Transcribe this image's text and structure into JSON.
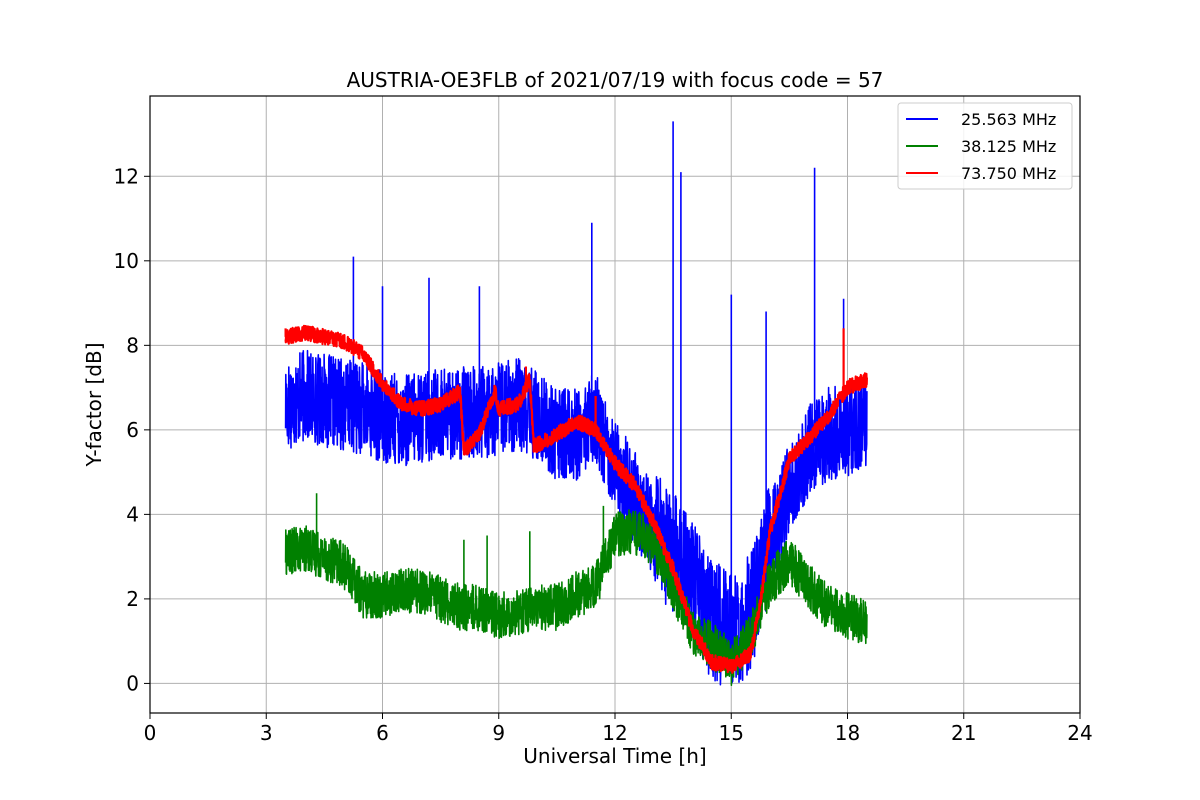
{
  "chart_data": {
    "type": "line",
    "title": "AUSTRIA-OE3FLB of 2021/07/19 with focus code = 57",
    "xlabel": "Universal Time [h]",
    "ylabel": "Y-factor [dB]",
    "xlim": [
      0,
      24
    ],
    "ylim": [
      -0.7,
      13.9
    ],
    "xticks": [
      0,
      3,
      6,
      9,
      12,
      15,
      18,
      21,
      24
    ],
    "xtick_labels": [
      "0",
      "3",
      "6",
      "9",
      "12",
      "15",
      "18",
      "21",
      "24"
    ],
    "yticks": [
      0,
      2,
      4,
      6,
      8,
      10,
      12
    ],
    "ytick_labels": [
      "0",
      "2",
      "4",
      "6",
      "8",
      "10",
      "12"
    ],
    "grid": true,
    "legend_position": "top-right",
    "series": [
      {
        "name": "25.563 MHz",
        "color": "#0000ff",
        "x": [
          3.5,
          4.0,
          4.5,
          5.0,
          5.5,
          6.0,
          6.5,
          7.0,
          7.5,
          8.0,
          8.5,
          9.0,
          9.5,
          10.0,
          10.5,
          11.0,
          11.5,
          12.0,
          12.5,
          13.0,
          13.5,
          14.0,
          14.5,
          15.0,
          15.5,
          16.0,
          16.5,
          17.0,
          17.5,
          18.0,
          18.5
        ],
        "y": [
          6.6,
          6.8,
          6.7,
          6.6,
          6.5,
          6.3,
          6.2,
          6.3,
          6.4,
          6.4,
          6.4,
          6.5,
          6.6,
          6.3,
          5.9,
          5.9,
          6.3,
          5.2,
          4.4,
          3.6,
          3.1,
          2.4,
          1.5,
          1.2,
          1.7,
          3.4,
          4.6,
          5.5,
          5.9,
          6.0,
          6.2
        ],
        "spikes": [
          [
            5.25,
            10.1
          ],
          [
            6.0,
            9.4
          ],
          [
            7.2,
            9.6
          ],
          [
            8.5,
            9.4
          ],
          [
            11.4,
            10.9
          ],
          [
            13.5,
            13.3
          ],
          [
            13.7,
            12.1
          ],
          [
            15.0,
            9.2
          ],
          [
            15.9,
            8.8
          ],
          [
            17.15,
            12.2
          ],
          [
            17.9,
            9.1
          ]
        ]
      },
      {
        "name": "38.125 MHz",
        "color": "#008000",
        "x": [
          3.5,
          4.0,
          4.5,
          5.0,
          5.5,
          6.0,
          6.5,
          7.0,
          7.5,
          8.0,
          8.5,
          9.0,
          9.5,
          10.0,
          10.5,
          11.0,
          11.5,
          12.0,
          12.5,
          13.0,
          13.5,
          14.0,
          14.5,
          15.0,
          15.5,
          16.0,
          16.5,
          17.0,
          17.5,
          18.0,
          18.5
        ],
        "y": [
          3.1,
          3.2,
          3.0,
          2.8,
          2.1,
          2.1,
          2.2,
          2.2,
          2.0,
          1.8,
          1.8,
          1.6,
          1.7,
          1.8,
          1.8,
          2.1,
          2.3,
          3.5,
          3.6,
          3.3,
          2.3,
          1.2,
          0.9,
          0.5,
          1.1,
          2.4,
          2.9,
          2.3,
          1.8,
          1.6,
          1.4
        ],
        "spikes": [
          [
            4.3,
            4.5
          ],
          [
            8.1,
            3.4
          ],
          [
            8.7,
            3.5
          ],
          [
            9.8,
            3.6
          ],
          [
            11.7,
            4.2
          ]
        ]
      },
      {
        "name": "73.750 MHz",
        "color": "#ff0000",
        "x": [
          3.5,
          4.0,
          4.5,
          5.0,
          5.5,
          6.0,
          6.5,
          7.0,
          7.5,
          8.0,
          8.1,
          8.5,
          8.9,
          9.0,
          9.5,
          9.8,
          9.9,
          10.5,
          11.0,
          11.5,
          12.0,
          12.5,
          13.0,
          13.5,
          14.0,
          14.5,
          15.0,
          15.5,
          15.8,
          16.0,
          16.5,
          17.0,
          17.5,
          18.0,
          18.5
        ],
        "y": [
          8.2,
          8.3,
          8.2,
          8.1,
          7.8,
          7.1,
          6.6,
          6.5,
          6.6,
          6.9,
          5.5,
          5.9,
          6.9,
          6.5,
          6.6,
          7.2,
          5.6,
          5.9,
          6.2,
          6.0,
          5.2,
          4.7,
          3.8,
          2.7,
          1.3,
          0.5,
          0.4,
          0.7,
          2.2,
          3.6,
          5.3,
          5.8,
          6.3,
          7.0,
          7.2
        ],
        "spikes": [
          [
            3.5,
            8.4
          ],
          [
            9.7,
            7.5
          ],
          [
            11.5,
            6.8
          ],
          [
            17.9,
            8.4
          ]
        ]
      }
    ]
  }
}
